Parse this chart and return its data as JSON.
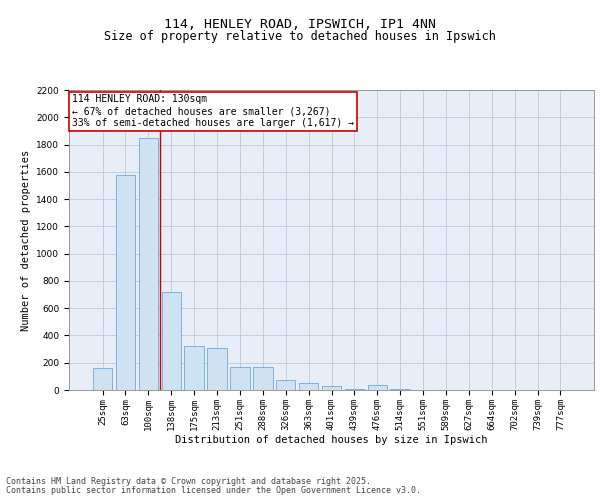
{
  "title": "114, HENLEY ROAD, IPSWICH, IP1 4NN",
  "subtitle": "Size of property relative to detached houses in Ipswich",
  "xlabel": "Distribution of detached houses by size in Ipswich",
  "ylabel": "Number of detached properties",
  "categories": [
    "25sqm",
    "63sqm",
    "100sqm",
    "138sqm",
    "175sqm",
    "213sqm",
    "251sqm",
    "288sqm",
    "326sqm",
    "363sqm",
    "401sqm",
    "439sqm",
    "476sqm",
    "514sqm",
    "551sqm",
    "589sqm",
    "627sqm",
    "664sqm",
    "702sqm",
    "739sqm",
    "777sqm"
  ],
  "values": [
    160,
    1580,
    1850,
    720,
    320,
    310,
    170,
    170,
    75,
    55,
    30,
    10,
    40,
    5,
    3,
    0,
    0,
    0,
    0,
    0,
    0
  ],
  "bar_color": "#cfe2f3",
  "bar_edge_color": "#5b9bd5",
  "property_line_color": "#cc0000",
  "annotation_text": "114 HENLEY ROAD: 130sqm\n← 67% of detached houses are smaller (3,267)\n33% of semi-detached houses are larger (1,617) →",
  "annotation_box_color": "#cc0000",
  "ylim": [
    0,
    2200
  ],
  "yticks": [
    0,
    200,
    400,
    600,
    800,
    1000,
    1200,
    1400,
    1600,
    1800,
    2000,
    2200
  ],
  "grid_color": "#c0c8d8",
  "bg_color": "#e8eef7",
  "footer_line1": "Contains HM Land Registry data © Crown copyright and database right 2025.",
  "footer_line2": "Contains public sector information licensed under the Open Government Licence v3.0.",
  "title_fontsize": 9.5,
  "subtitle_fontsize": 8.5,
  "axis_label_fontsize": 7.5,
  "tick_fontsize": 6.5,
  "annotation_fontsize": 7,
  "footer_fontsize": 6
}
